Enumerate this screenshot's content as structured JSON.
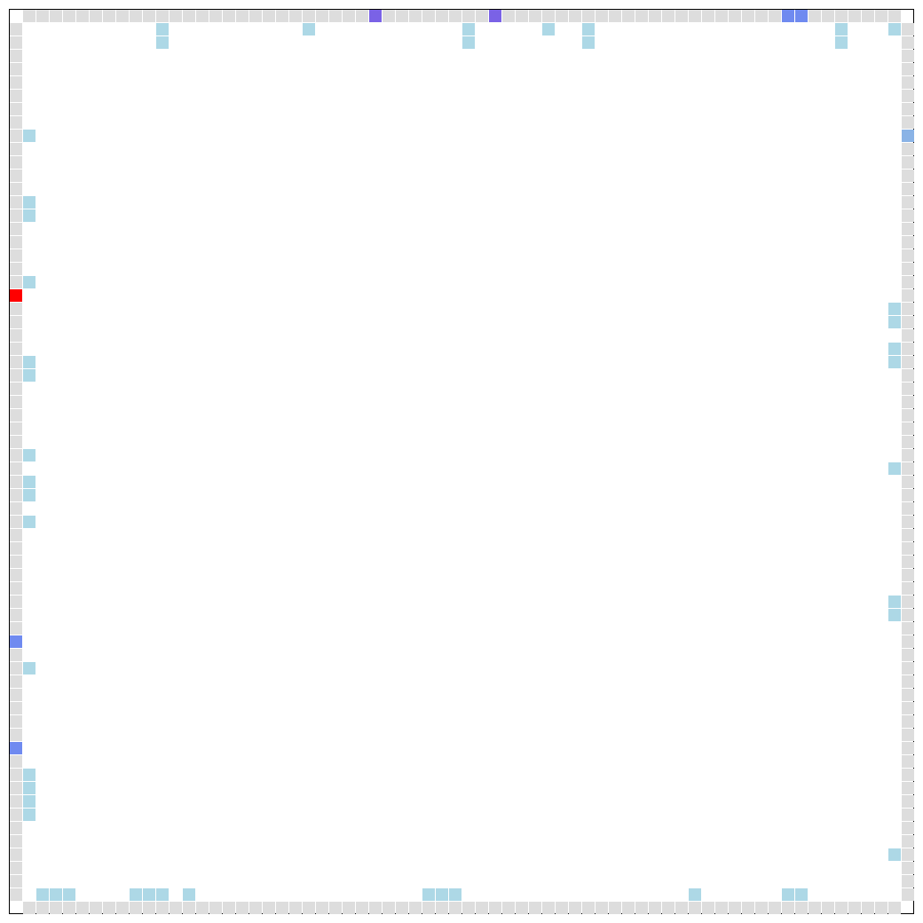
{
  "board": {
    "cols": 68,
    "rows": 68,
    "colors": {
      "empty": "#ffffff",
      "wall": "#dddddd",
      "visited": "#add8e6",
      "agent": "#ff0000",
      "blue": "#6f8af0",
      "purple": "#7a62e6",
      "steel": "#8ab3e6"
    },
    "wall_cells": "perimeter",
    "special_cells": [
      {
        "col": 27,
        "row": 0,
        "kind": "purple"
      },
      {
        "col": 36,
        "row": 0,
        "kind": "purple"
      },
      {
        "col": 58,
        "row": 0,
        "kind": "blue"
      },
      {
        "col": 59,
        "row": 0,
        "kind": "blue"
      },
      {
        "col": 0,
        "row": 21,
        "kind": "agent"
      },
      {
        "col": 0,
        "row": 47,
        "kind": "blue"
      },
      {
        "col": 0,
        "row": 55,
        "kind": "blue"
      },
      {
        "col": 67,
        "row": 9,
        "kind": "steel"
      }
    ],
    "visited_cells": [
      [
        11,
        1
      ],
      [
        22,
        1
      ],
      [
        34,
        1
      ],
      [
        40,
        1
      ],
      [
        43,
        1
      ],
      [
        62,
        1
      ],
      [
        66,
        1
      ],
      [
        11,
        2
      ],
      [
        34,
        2
      ],
      [
        43,
        2
      ],
      [
        62,
        2
      ],
      [
        1,
        9
      ],
      [
        1,
        14
      ],
      [
        1,
        15
      ],
      [
        1,
        20
      ],
      [
        66,
        22
      ],
      [
        66,
        23
      ],
      [
        66,
        25
      ],
      [
        66,
        26
      ],
      [
        1,
        26
      ],
      [
        1,
        27
      ],
      [
        1,
        33
      ],
      [
        66,
        34
      ],
      [
        1,
        35
      ],
      [
        1,
        36
      ],
      [
        1,
        38
      ],
      [
        66,
        44
      ],
      [
        66,
        45
      ],
      [
        1,
        49
      ],
      [
        1,
        57
      ],
      [
        1,
        58
      ],
      [
        1,
        59
      ],
      [
        1,
        60
      ],
      [
        66,
        63
      ],
      [
        2,
        66
      ],
      [
        3,
        66
      ],
      [
        4,
        66
      ],
      [
        9,
        66
      ],
      [
        10,
        66
      ],
      [
        11,
        66
      ],
      [
        13,
        66
      ],
      [
        31,
        66
      ],
      [
        32,
        66
      ],
      [
        33,
        66
      ],
      [
        51,
        66
      ],
      [
        58,
        66
      ],
      [
        59,
        66
      ]
    ]
  }
}
